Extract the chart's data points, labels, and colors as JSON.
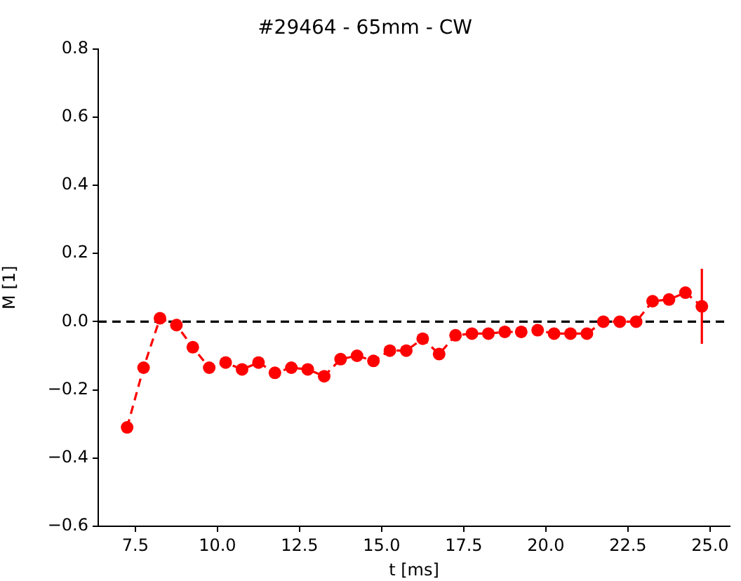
{
  "chart_data": {
    "type": "line",
    "title": "#29464 - 65mm - CW",
    "xlabel": "t [ms]",
    "ylabel": "M [1]",
    "x": [
      7.25,
      7.75,
      8.25,
      8.75,
      9.25,
      9.75,
      10.25,
      10.75,
      11.25,
      11.75,
      12.25,
      12.75,
      13.25,
      13.75,
      14.25,
      14.75,
      15.25,
      15.75,
      16.25,
      16.75,
      17.25,
      17.75,
      18.25,
      18.75,
      19.25,
      19.75,
      20.25,
      20.75,
      21.25,
      21.75,
      22.25,
      22.75,
      23.25,
      23.75,
      24.25,
      24.75
    ],
    "series": [
      {
        "color": "#ff0000",
        "values": [
          -0.31,
          -0.135,
          0.01,
          -0.01,
          -0.075,
          -0.135,
          -0.12,
          -0.14,
          -0.12,
          -0.15,
          -0.135,
          -0.14,
          -0.16,
          -0.11,
          -0.1,
          -0.115,
          -0.085,
          -0.085,
          -0.05,
          -0.095,
          -0.04,
          -0.035,
          -0.035,
          -0.03,
          -0.03,
          -0.025,
          -0.035,
          -0.035,
          -0.035,
          0.0,
          0.0,
          0.0,
          0.06,
          0.065,
          0.085,
          0.045
        ],
        "errors": [
          null,
          null,
          null,
          null,
          null,
          null,
          null,
          null,
          null,
          null,
          null,
          null,
          null,
          null,
          null,
          null,
          null,
          null,
          null,
          null,
          null,
          null,
          null,
          null,
          null,
          null,
          null,
          null,
          null,
          null,
          null,
          null,
          null,
          null,
          null,
          [
            -0.065,
            0.155
          ]
        ]
      }
    ],
    "xlim": [
      6.37,
      25.6
    ],
    "xticks": [
      7.5,
      {
        "value": 10,
        "label": "10.0"
      },
      12.5,
      {
        "value": 15,
        "label": "15.0"
      },
      17.5,
      {
        "value": 20,
        "label": "20.0"
      },
      22.5,
      {
        "value": 25,
        "label": "25.0"
      }
    ],
    "ylim": [
      -0.6,
      0.8
    ],
    "yticks": [
      {
        "value": -0.6,
        "label": "−0.6"
      },
      {
        "value": -0.4,
        "label": "−0.4"
      },
      {
        "value": -0.2,
        "label": "−0.2"
      },
      {
        "value": 0,
        "label": "0.0"
      },
      0.2,
      0.4,
      0.6,
      0.8
    ],
    "ref_lines": [
      {
        "axis": "y",
        "value": 0,
        "color": "#000000",
        "line_style": "dashed"
      }
    ],
    "marker": "circle",
    "line_style": "dashed",
    "grid": false,
    "legend": false
  }
}
